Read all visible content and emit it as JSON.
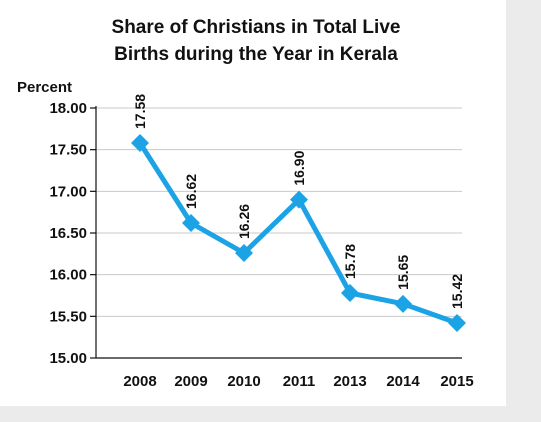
{
  "chart_data": {
    "type": "line",
    "title_lines": [
      "Share of Christians in Total Live",
      "Births during the Year in Kerala"
    ],
    "ylabel": "Percent",
    "xlabel": "",
    "categories": [
      "2008",
      "2009",
      "2010",
      "2011",
      "2013",
      "2014",
      "2015"
    ],
    "values": [
      17.58,
      16.62,
      16.26,
      16.9,
      15.78,
      15.65,
      15.42
    ],
    "data_labels": [
      "17.58",
      "16.62",
      "16.26",
      "16.90",
      "15.78",
      "15.65",
      "15.42"
    ],
    "yticks": [
      "15.00",
      "15.50",
      "16.00",
      "16.50",
      "17.00",
      "17.50",
      "18.00"
    ],
    "ylim": [
      15.0,
      18.0
    ],
    "grid": true,
    "legend": "none",
    "line_color": "#1ca3e6",
    "marker": "diamond"
  }
}
